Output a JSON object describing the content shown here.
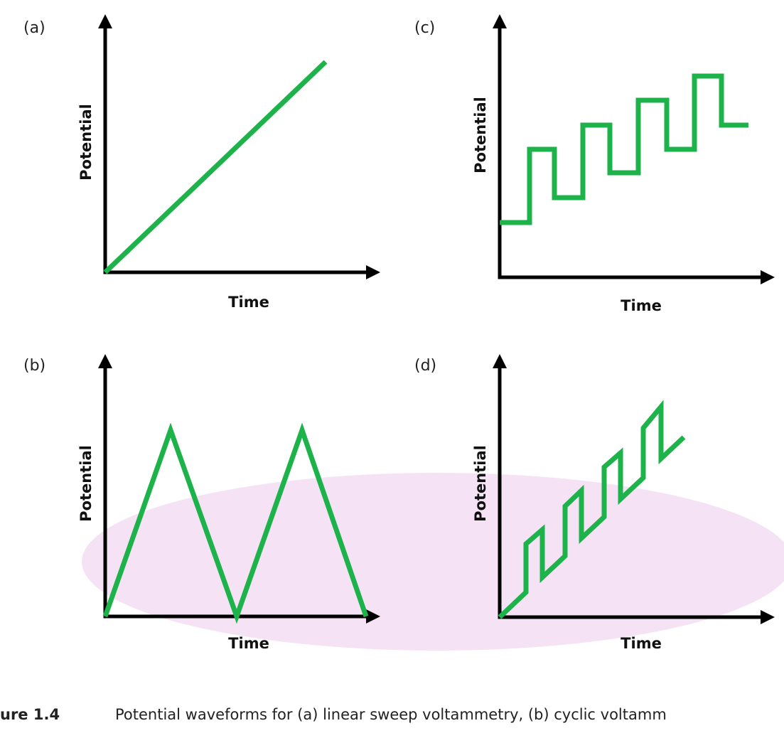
{
  "panels": [
    {
      "label": "(a)",
      "y_label": "Potential",
      "x_label": "Time"
    },
    {
      "label": "(c)",
      "y_label": "Potential",
      "x_label": "Time"
    },
    {
      "label": "(b)",
      "y_label": "Potential",
      "x_label": "Time"
    },
    {
      "label": "(d)",
      "y_label": "Potential",
      "x_label": "Time"
    }
  ],
  "caption": {
    "number": "ure 1.4",
    "text": "Potential waveforms for (a) linear sweep voltammetry, (b) cyclic voltamm"
  }
}
